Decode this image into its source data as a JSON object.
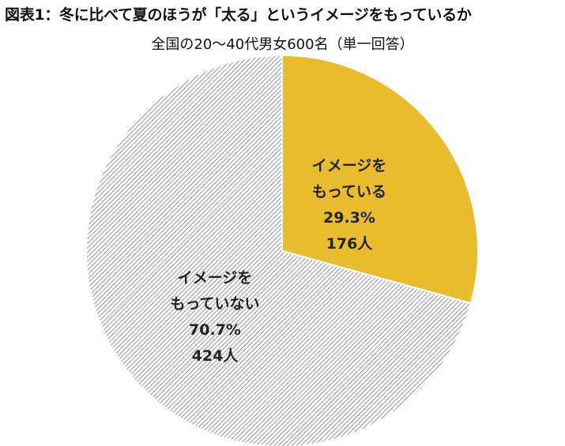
{
  "title": "図表1：冬に比べて夏のほうが「太る」というイメージをもっているか",
  "subtitle": "全国の20〜40代男女600名（単一回答）",
  "colors": {
    "yes": "#E9BC2D",
    "no_hatch_bg": "#ffffff",
    "no_hatch_line": "#7a7a7a",
    "border": "#ffffff"
  },
  "chart_data": {
    "type": "pie",
    "title": "図表1：冬に比べて夏のほうが「太る」というイメージをもっているか",
    "subtitle": "全国の20〜40代男女600名（単一回答）",
    "start": "12 o'clock, clockwise",
    "slices": [
      {
        "label_lines": [
          "イメージを",
          "もっている"
        ],
        "percent": 29.3,
        "percent_label": "29.3%",
        "count": 176,
        "count_label": "176人",
        "fill": "solid-gold"
      },
      {
        "label_lines": [
          "イメージを",
          "もっていない"
        ],
        "percent": 70.7,
        "percent_label": "70.7%",
        "count": 424,
        "count_label": "424人",
        "fill": "diagonal-hatch-gray"
      }
    ]
  }
}
